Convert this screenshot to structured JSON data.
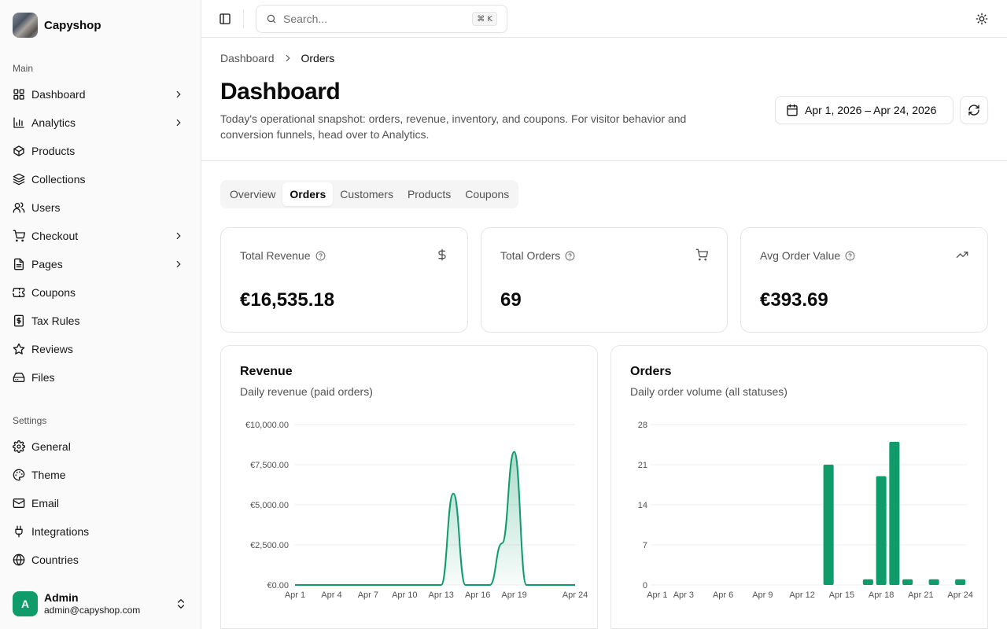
{
  "brand": {
    "name": "Capyshop"
  },
  "sidebar": {
    "main_label": "Main",
    "main_items": [
      {
        "label": "Dashboard",
        "icon": "layout-grid-icon",
        "chevron": true
      },
      {
        "label": "Analytics",
        "icon": "bar-chart-icon",
        "chevron": true
      },
      {
        "label": "Products",
        "icon": "package-icon",
        "chevron": false
      },
      {
        "label": "Collections",
        "icon": "layers-icon",
        "chevron": false
      },
      {
        "label": "Users",
        "icon": "users-icon",
        "chevron": false
      },
      {
        "label": "Checkout",
        "icon": "cart-icon",
        "chevron": true
      },
      {
        "label": "Pages",
        "icon": "file-icon",
        "chevron": true
      },
      {
        "label": "Coupons",
        "icon": "ticket-icon",
        "chevron": false
      },
      {
        "label": "Tax Rules",
        "icon": "receipt-icon",
        "chevron": false
      },
      {
        "label": "Reviews",
        "icon": "star-icon",
        "chevron": false
      },
      {
        "label": "Files",
        "icon": "hard-drive-icon",
        "chevron": false
      }
    ],
    "settings_label": "Settings",
    "settings_items": [
      {
        "label": "General",
        "icon": "gear-icon"
      },
      {
        "label": "Theme",
        "icon": "palette-icon"
      },
      {
        "label": "Email",
        "icon": "mail-icon"
      },
      {
        "label": "Integrations",
        "icon": "plug-icon"
      },
      {
        "label": "Countries",
        "icon": "globe-icon"
      }
    ]
  },
  "user": {
    "initial": "A",
    "name": "Admin",
    "email": "admin@capyshop.com"
  },
  "header": {
    "search_placeholder": "Search...",
    "search_shortcut": "⌘ K"
  },
  "breadcrumb": [
    "Dashboard",
    "Orders"
  ],
  "page": {
    "title": "Dashboard",
    "description": "Today's operational snapshot: orders, revenue, inventory, and coupons. For visitor behavior and conversion funnels, head over to Analytics.",
    "date_range": "Apr 1, 2026 – Apr 24, 2026"
  },
  "tabs": [
    {
      "label": "Overview",
      "active": false
    },
    {
      "label": "Orders",
      "active": true
    },
    {
      "label": "Customers",
      "active": false
    },
    {
      "label": "Products",
      "active": false
    },
    {
      "label": "Coupons",
      "active": false
    }
  ],
  "kpis": [
    {
      "label": "Total Revenue",
      "value": "€16,535.18",
      "icon": "dollar-icon"
    },
    {
      "label": "Total Orders",
      "value": "69",
      "icon": "cart-icon"
    },
    {
      "label": "Avg Order Value",
      "value": "€393.69",
      "icon": "trending-up-icon"
    }
  ],
  "colors": {
    "accent": "#0f9b6a"
  },
  "chart_data": [
    {
      "type": "area",
      "title": "Revenue",
      "subtitle": "Daily revenue (paid orders)",
      "x": [
        "Apr 1",
        "Apr 2",
        "Apr 3",
        "Apr 4",
        "Apr 5",
        "Apr 6",
        "Apr 7",
        "Apr 8",
        "Apr 9",
        "Apr 10",
        "Apr 11",
        "Apr 12",
        "Apr 13",
        "Apr 14",
        "Apr 15",
        "Apr 16",
        "Apr 17",
        "Apr 18",
        "Apr 19",
        "Apr 20",
        "Apr 21",
        "Apr 22",
        "Apr 23",
        "Apr 24"
      ],
      "values": [
        0,
        0,
        0,
        0,
        0,
        0,
        0,
        0,
        0,
        0,
        0,
        0,
        0,
        5700,
        0,
        0,
        0,
        2600,
        8300,
        0,
        0,
        0,
        0,
        0
      ],
      "xticks": [
        "Apr 1",
        "Apr 4",
        "Apr 7",
        "Apr 10",
        "Apr 13",
        "Apr 16",
        "Apr 19",
        "Apr 24"
      ],
      "yticks": [
        "€0.00",
        "€2,500.00",
        "€5,000.00",
        "€7,500.00",
        "€10,000.00"
      ],
      "ylim": [
        0,
        10000
      ],
      "grid": true
    },
    {
      "type": "bar",
      "title": "Orders",
      "subtitle": "Daily order volume (all statuses)",
      "x": [
        "Apr 1",
        "Apr 2",
        "Apr 3",
        "Apr 4",
        "Apr 5",
        "Apr 6",
        "Apr 7",
        "Apr 8",
        "Apr 9",
        "Apr 10",
        "Apr 11",
        "Apr 12",
        "Apr 13",
        "Apr 14",
        "Apr 15",
        "Apr 16",
        "Apr 17",
        "Apr 18",
        "Apr 19",
        "Apr 20",
        "Apr 21",
        "Apr 22",
        "Apr 23",
        "Apr 24"
      ],
      "values": [
        0,
        0,
        0,
        0,
        0,
        0,
        0,
        0,
        0,
        0,
        0,
        0,
        0,
        21,
        0,
        0,
        1,
        19,
        25,
        1,
        0,
        1,
        0,
        1
      ],
      "xticks": [
        "Apr 1",
        "Apr 3",
        "Apr 6",
        "Apr 9",
        "Apr 12",
        "Apr 15",
        "Apr 18",
        "Apr 21",
        "Apr 24"
      ],
      "yticks": [
        "0",
        "7",
        "14",
        "21",
        "28"
      ],
      "ylim": [
        0,
        28
      ],
      "grid": true
    }
  ]
}
